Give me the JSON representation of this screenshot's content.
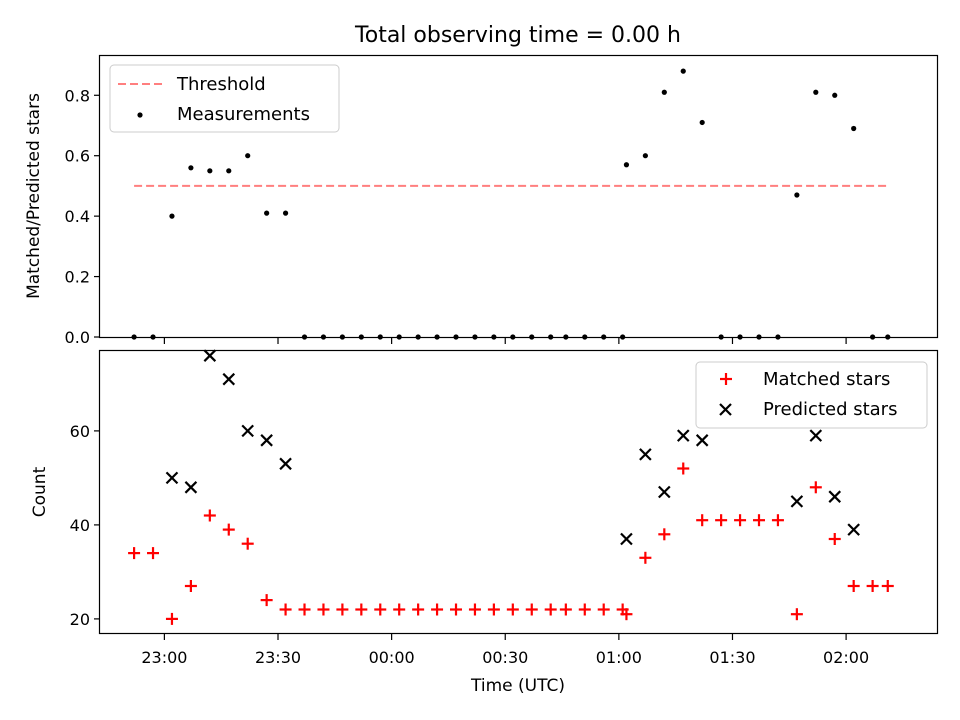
{
  "chart_data": [
    {
      "type": "scatter",
      "title": "Total observing time = 0.00 h",
      "xlabel": "",
      "ylabel": "Matched/Predicted stars",
      "xlim": [
        "22:43",
        "02:24"
      ],
      "ylim": [
        0,
        0.93
      ],
      "yticks": [
        "0.0",
        "0.2",
        "0.4",
        "0.6",
        "0.8"
      ],
      "legend": {
        "position": "upper-left",
        "entries": [
          "Threshold",
          "Measurements"
        ]
      },
      "series": [
        {
          "name": "Threshold",
          "style": "dashed-line",
          "color": "#ff7f7f",
          "x": [
            "22:52",
            "02:11"
          ],
          "y": [
            0.5,
            0.5
          ]
        },
        {
          "name": "Measurements",
          "style": "dot",
          "color": "#000000",
          "x": [
            "22:52",
            "22:57",
            "23:02",
            "23:07",
            "23:12",
            "23:17",
            "23:22",
            "23:27",
            "23:32",
            "23:37",
            "23:42",
            "23:47",
            "23:52",
            "23:57",
            "00:02",
            "00:07",
            "00:12",
            "00:17",
            "00:22",
            "00:27",
            "00:32",
            "00:37",
            "00:42",
            "00:46",
            "00:51",
            "00:56",
            "01:01",
            "01:02",
            "01:07",
            "01:12",
            "01:17",
            "01:22",
            "01:27",
            "01:32",
            "01:37",
            "01:42",
            "01:47",
            "01:52",
            "01:57",
            "02:02",
            "02:07",
            "02:11"
          ],
          "y": [
            0,
            0,
            0.4,
            0.56,
            0.55,
            0.55,
            0.6,
            0.41,
            0.41,
            0,
            0,
            0,
            0,
            0,
            0,
            0,
            0,
            0,
            0,
            0,
            0,
            0,
            0,
            0,
            0,
            0,
            0,
            0.57,
            0.6,
            0.81,
            0.88,
            0.71,
            0,
            0,
            0,
            0,
            0.47,
            0.81,
            0.8,
            0.69,
            0,
            0
          ]
        }
      ]
    },
    {
      "type": "scatter",
      "title": "",
      "xlabel": "Time (UTC)",
      "ylabel": "Count",
      "xlim": [
        "22:43",
        "02:24"
      ],
      "ylim": [
        17,
        77
      ],
      "yticks": [
        "20",
        "40",
        "60"
      ],
      "xticks": [
        "23:00",
        "23:30",
        "00:00",
        "00:30",
        "01:00",
        "01:30",
        "02:00"
      ],
      "legend": {
        "position": "upper-right",
        "entries": [
          "Matched stars",
          "Predicted stars"
        ]
      },
      "series": [
        {
          "name": "Matched stars",
          "style": "plus",
          "color": "#ff0000",
          "x": [
            "22:52",
            "22:57",
            "23:02",
            "23:07",
            "23:12",
            "23:17",
            "23:22",
            "23:27",
            "23:32",
            "23:37",
            "23:42",
            "23:47",
            "23:52",
            "23:57",
            "00:02",
            "00:07",
            "00:12",
            "00:17",
            "00:22",
            "00:27",
            "00:32",
            "00:37",
            "00:42",
            "00:46",
            "00:51",
            "00:56",
            "01:01",
            "01:02",
            "01:07",
            "01:12",
            "01:17",
            "01:22",
            "01:27",
            "01:32",
            "01:37",
            "01:42",
            "01:47",
            "01:52",
            "01:57",
            "02:02",
            "02:07",
            "02:11"
          ],
          "y": [
            34,
            34,
            20,
            27,
            42,
            39,
            36,
            24,
            22,
            22,
            22,
            22,
            22,
            22,
            22,
            22,
            22,
            22,
            22,
            22,
            22,
            22,
            22,
            22,
            22,
            22,
            22,
            21,
            33,
            38,
            52,
            41,
            41,
            41,
            41,
            41,
            21,
            48,
            37,
            27,
            27,
            27
          ]
        },
        {
          "name": "Predicted stars",
          "style": "x",
          "color": "#000000",
          "x": [
            "23:02",
            "23:07",
            "23:12",
            "23:17",
            "23:22",
            "23:27",
            "23:32",
            "01:02",
            "01:07",
            "01:12",
            "01:17",
            "01:22",
            "01:47",
            "01:52",
            "01:57",
            "02:02"
          ],
          "y": [
            50,
            48,
            76,
            71,
            60,
            58,
            53,
            37,
            55,
            47,
            59,
            58,
            45,
            59,
            46,
            39
          ]
        }
      ]
    }
  ]
}
